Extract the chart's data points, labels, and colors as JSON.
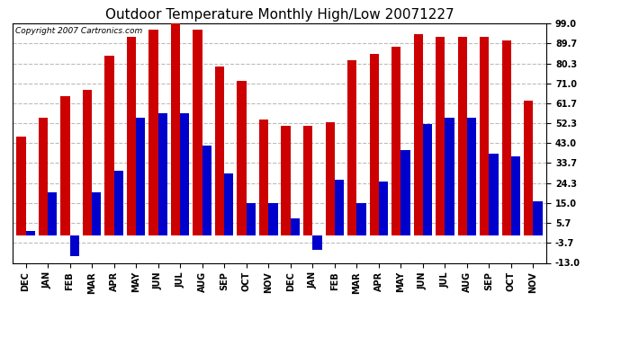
{
  "title": "Outdoor Temperature Monthly High/Low 20071227",
  "copyright_text": "Copyright 2007 Cartronics.com",
  "months": [
    "DEC",
    "JAN",
    "FEB",
    "MAR",
    "APR",
    "MAY",
    "JUN",
    "JUL",
    "AUG",
    "SEP",
    "OCT",
    "NOV",
    "DEC",
    "JAN",
    "FEB",
    "MAR",
    "APR",
    "MAY",
    "JUN",
    "JUL",
    "AUG",
    "SEP",
    "OCT",
    "NOV"
  ],
  "highs": [
    46,
    55,
    65,
    68,
    84,
    93,
    96,
    99,
    96,
    79,
    72,
    54,
    51,
    51,
    53,
    82,
    85,
    88,
    94,
    93,
    93,
    93,
    91,
    63
  ],
  "lows": [
    2,
    20,
    -10,
    20,
    30,
    55,
    57,
    57,
    42,
    29,
    15,
    15,
    8,
    -7,
    26,
    15,
    25,
    40,
    52,
    55,
    55,
    38,
    37,
    16
  ],
  "yticks": [
    -13.0,
    -3.7,
    5.7,
    15.0,
    24.3,
    33.7,
    43.0,
    52.3,
    61.7,
    71.0,
    80.3,
    89.7,
    99.0
  ],
  "ymin": -13.0,
  "ymax": 99.0,
  "bar_width": 0.42,
  "high_color": "#cc0000",
  "low_color": "#0000cc",
  "bg_color": "#ffffff",
  "grid_color": "#bbbbbb",
  "title_fontsize": 11,
  "tick_fontsize": 7,
  "copyright_fontsize": 6.5
}
